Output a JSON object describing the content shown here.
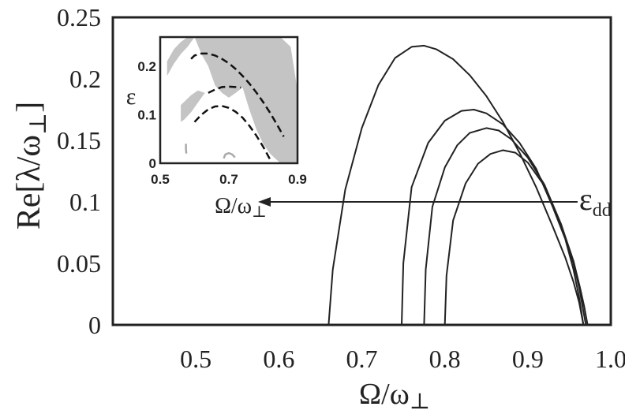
{
  "chart_data": [
    {
      "type": "line",
      "xlabel": "Ω/ω⊥",
      "ylabel": "Re[λ/ω⊥]",
      "xlim": [
        0.4,
        1.0
      ],
      "ylim": [
        0,
        0.25
      ],
      "x_ticks": [
        "0.5",
        "0.6",
        "0.7",
        "0.8",
        "0.9",
        "1.0"
      ],
      "x_tick_values": [
        0.5,
        0.6,
        0.7,
        0.8,
        0.9,
        1.0
      ],
      "y_ticks": [
        "0",
        "0.05",
        "0.1",
        "0.15",
        "0.2",
        "0.25"
      ],
      "y_tick_values": [
        0,
        0.05,
        0.1,
        0.15,
        0.2,
        0.25
      ],
      "grid": false,
      "series": [
        {
          "x": [
            0.66,
            0.665,
            0.68,
            0.7,
            0.72,
            0.74,
            0.76,
            0.775,
            0.79,
            0.81,
            0.83,
            0.85,
            0.87,
            0.89,
            0.91,
            0.93,
            0.945,
            0.955,
            0.962,
            0.967
          ],
          "values": [
            0.0,
            0.045,
            0.11,
            0.16,
            0.195,
            0.217,
            0.226,
            0.227,
            0.224,
            0.216,
            0.203,
            0.186,
            0.165,
            0.14,
            0.112,
            0.08,
            0.055,
            0.035,
            0.018,
            0.0
          ]
        },
        {
          "x": [
            0.748,
            0.75,
            0.76,
            0.78,
            0.8,
            0.82,
            0.835,
            0.85,
            0.87,
            0.89,
            0.91,
            0.93,
            0.945,
            0.955,
            0.962,
            0.967
          ],
          "values": [
            0.0,
            0.05,
            0.112,
            0.148,
            0.166,
            0.174,
            0.175,
            0.172,
            0.163,
            0.148,
            0.127,
            0.096,
            0.07,
            0.045,
            0.022,
            0.0
          ]
        },
        {
          "x": [
            0.775,
            0.777,
            0.785,
            0.8,
            0.815,
            0.83,
            0.85,
            0.865,
            0.88,
            0.9,
            0.92,
            0.94,
            0.955,
            0.962,
            0.966,
            0.97
          ],
          "values": [
            0.0,
            0.045,
            0.096,
            0.128,
            0.146,
            0.156,
            0.16,
            0.158,
            0.151,
            0.136,
            0.114,
            0.082,
            0.05,
            0.03,
            0.015,
            0.0
          ]
        },
        {
          "x": [
            0.8,
            0.802,
            0.81,
            0.825,
            0.84,
            0.855,
            0.87,
            0.885,
            0.9,
            0.92,
            0.94,
            0.955,
            0.963,
            0.968,
            0.972
          ],
          "values": [
            0.0,
            0.04,
            0.085,
            0.115,
            0.131,
            0.139,
            0.142,
            0.14,
            0.132,
            0.113,
            0.082,
            0.052,
            0.03,
            0.015,
            0.0
          ]
        }
      ],
      "annotations": [
        {
          "text": "ε",
          "subscript": "dd",
          "arrow_from_x": 0.96,
          "arrow_to_x": 0.575,
          "arrow_y": 0.1
        }
      ],
      "line_color": "#222222"
    },
    {
      "type": "area",
      "xlabel": "Ω/ω⊥",
      "ylabel": "ε",
      "xlim": [
        0.5,
        0.9
      ],
      "ylim": [
        0,
        0.26
      ],
      "x_ticks": [
        "0.5",
        "0.7",
        "0.9"
      ],
      "x_tick_values": [
        0.5,
        0.7,
        0.9
      ],
      "y_ticks": [
        "0",
        "0.1",
        "0.2"
      ],
      "y_tick_values": [
        0,
        0.1,
        0.2
      ],
      "fill_color": "#c4c4c4",
      "regions": [
        {
          "x": [
            0.6,
            0.63,
            0.66,
            0.7,
            0.735,
            0.76,
            0.79,
            0.82,
            0.85,
            0.88,
            0.9,
            0.9,
            0.88,
            0.85,
            0.82,
            0.8,
            0.78,
            0.76,
            0.74,
            0.72,
            0.7,
            0.68,
            0.66,
            0.64,
            0.62,
            0.6
          ],
          "y": [
            0.26,
            0.26,
            0.26,
            0.26,
            0.26,
            0.26,
            0.26,
            0.26,
            0.26,
            0.24,
            0.15,
            0.0,
            0.0,
            0.0,
            0.02,
            0.04,
            0.07,
            0.11,
            0.156,
            0.145,
            0.135,
            0.145,
            0.16,
            0.2,
            0.225,
            0.26
          ]
        },
        {
          "x": [
            0.52,
            0.54,
            0.56,
            0.58,
            0.6,
            0.58,
            0.56,
            0.54,
            0.52
          ],
          "y": [
            0.21,
            0.235,
            0.25,
            0.26,
            0.26,
            0.24,
            0.225,
            0.205,
            0.18
          ]
        },
        {
          "x": [
            0.56,
            0.575,
            0.59,
            0.61,
            0.63,
            0.61,
            0.59,
            0.57,
            0.56
          ],
          "y": [
            0.12,
            0.13,
            0.14,
            0.15,
            0.145,
            0.125,
            0.105,
            0.09,
            0.085
          ]
        }
      ],
      "dashed_boundaries": [
        {
          "x": [
            0.59,
            0.6,
            0.62,
            0.64,
            0.66,
            0.68,
            0.7,
            0.72,
            0.74,
            0.76,
            0.78,
            0.8,
            0.82,
            0.84,
            0.86
          ],
          "y": [
            0.215,
            0.222,
            0.226,
            0.226,
            0.222,
            0.215,
            0.206,
            0.194,
            0.18,
            0.164,
            0.146,
            0.126,
            0.104,
            0.08,
            0.055
          ]
        },
        {
          "x": [
            0.6,
            0.62,
            0.64,
            0.66,
            0.68,
            0.7,
            0.72,
            0.74,
            0.76,
            0.78,
            0.8,
            0.82
          ],
          "y": [
            0.085,
            0.1,
            0.111,
            0.117,
            0.118,
            0.114,
            0.106,
            0.094,
            0.077,
            0.057,
            0.034,
            0.008
          ]
        },
        {
          "x": [
            0.64,
            0.66,
            0.68,
            0.7,
            0.72,
            0.735
          ],
          "y": [
            0.145,
            0.152,
            0.157,
            0.158,
            0.157,
            0.156
          ]
        }
      ],
      "light_curves": [
        {
          "x": [
            0.575,
            0.575,
            0.576
          ],
          "y": [
            0.04,
            0.03,
            0.02
          ]
        },
        {
          "x": [
            0.685,
            0.69,
            0.7,
            0.71,
            0.718
          ],
          "y": [
            0.01,
            0.018,
            0.021,
            0.018,
            0.012
          ]
        }
      ]
    }
  ]
}
